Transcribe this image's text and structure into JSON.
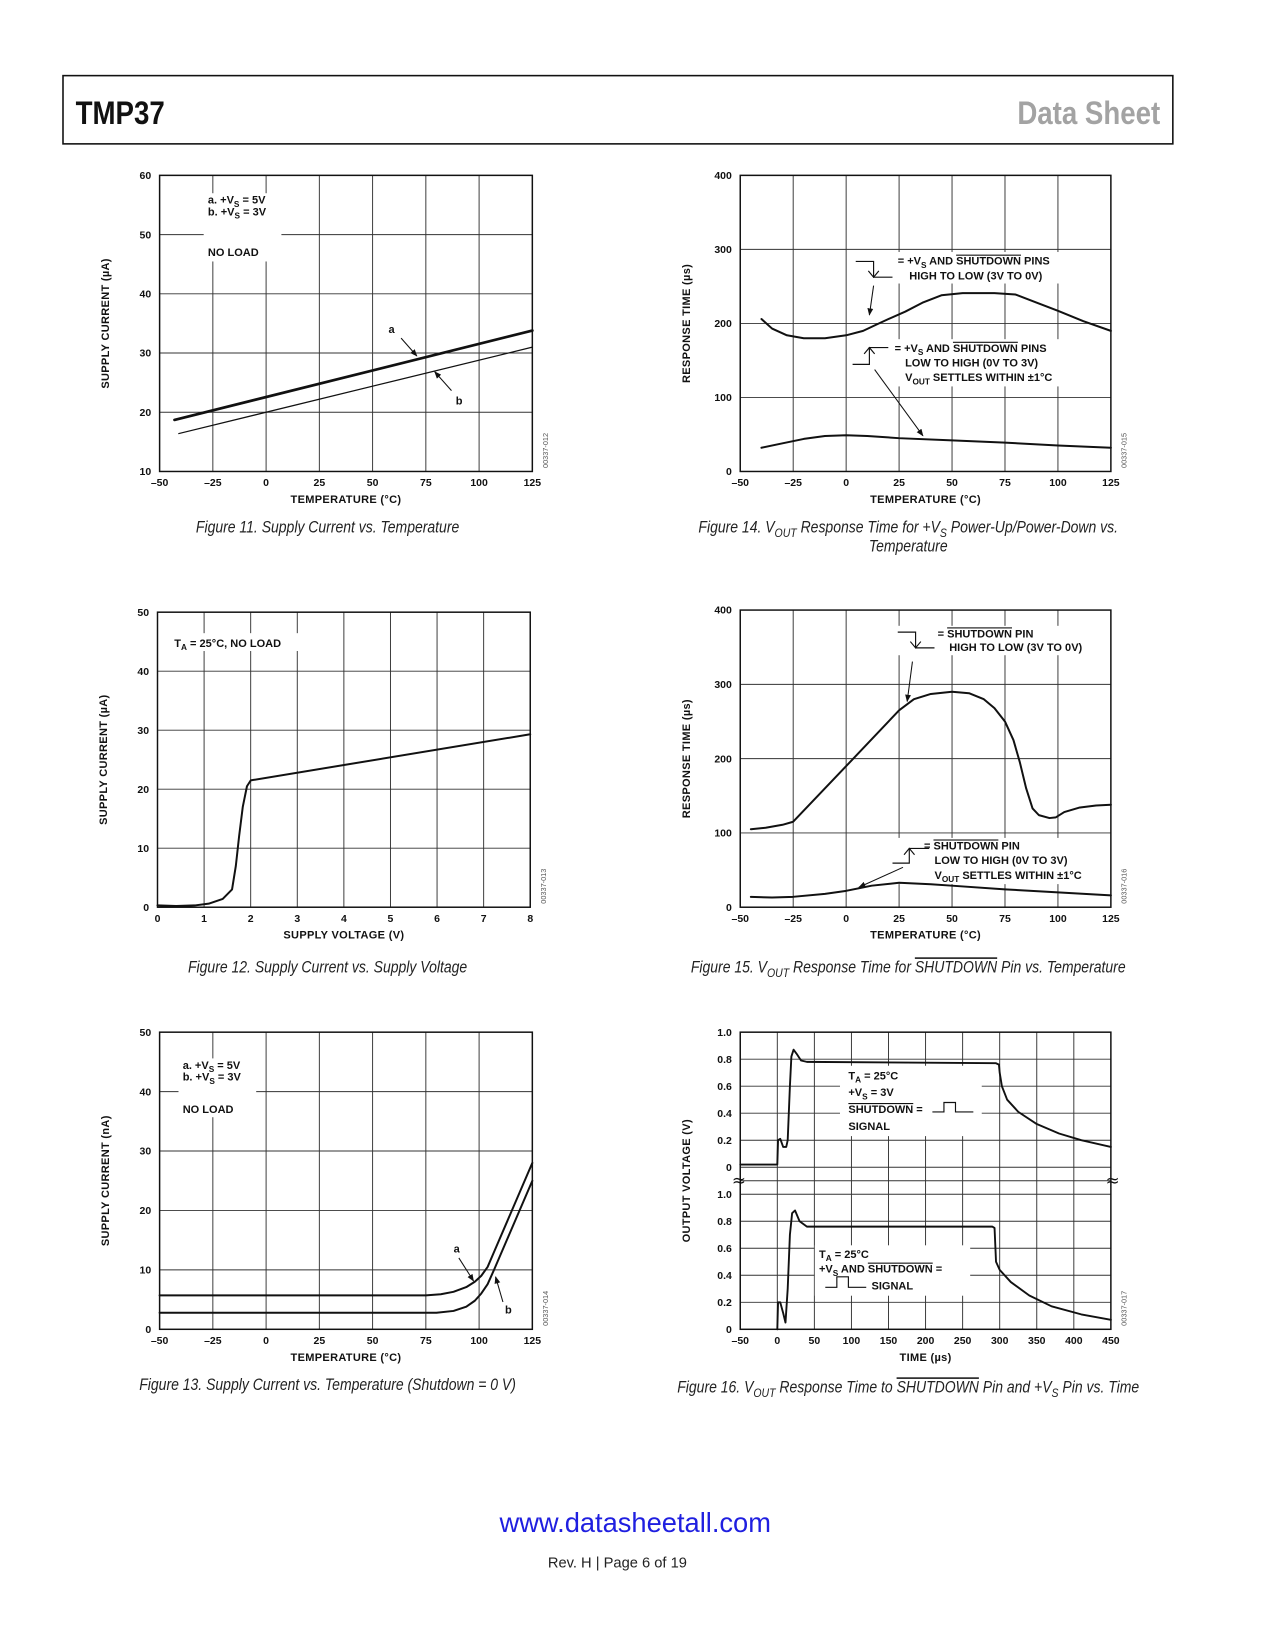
{
  "header": {
    "title": "TMP37",
    "doc_type": "Data Sheet"
  },
  "footer": {
    "url": "www.datasheetall.com",
    "page": "Rev. H | Page 6 of 19"
  },
  "chart_data": [
    {
      "type": "line",
      "caption_lines": [
        "Figure 11. Supply Current vs. Temperature"
      ],
      "figure_id": "00337-012",
      "xlabel": "TEMPERATURE (°C)",
      "ylabel": "SUPPLY CURRENT (µA)",
      "xlim": [
        -50,
        125
      ],
      "ylim": [
        10,
        60
      ],
      "xticks": [
        -50,
        -25,
        0,
        25,
        50,
        75,
        100,
        125
      ],
      "yticks": [
        10,
        20,
        30,
        40,
        50,
        60
      ],
      "grid": true,
      "series": [
        {
          "name": "a",
          "label": "a",
          "condition": "+VS = 5V",
          "points": [
            [
              -43,
              18.7
            ],
            [
              125,
              33.8
            ]
          ]
        },
        {
          "name": "b",
          "label": "b",
          "condition": "+VS = 3V",
          "points": [
            [
              -41,
              16.4
            ],
            [
              125,
              31.0
            ]
          ]
        }
      ],
      "annotations": [
        [
          "a.  +V{S} = 5V",
          "b.  +V{S} = 3V"
        ],
        [
          "NO LOAD"
        ]
      ]
    },
    {
      "type": "line",
      "caption_lines": [
        "Figure 14. V{OUT} Response Time for +V{S} Power-Up/Power-Down vs.",
        "Temperature"
      ],
      "figure_id": "00337-015",
      "xlabel": "TEMPERATURE (°C)",
      "ylabel": "RESPONSE TIME (µs)",
      "xlim": [
        -50,
        125
      ],
      "ylim": [
        0,
        400
      ],
      "xticks": [
        -50,
        -25,
        0,
        25,
        50,
        75,
        100,
        125
      ],
      "yticks": [
        0,
        100,
        200,
        300,
        400
      ],
      "grid": true,
      "series": [
        {
          "name": "high-to-low",
          "points": [
            [
              -40,
              206
            ],
            [
              -35,
              193
            ],
            [
              -28,
              184
            ],
            [
              -20,
              180
            ],
            [
              -10,
              180
            ],
            [
              0,
              184
            ],
            [
              8,
              190
            ],
            [
              14,
              198
            ],
            [
              20,
              206
            ],
            [
              28,
              216
            ],
            [
              36,
              228
            ],
            [
              45,
              238
            ],
            [
              55,
              241
            ],
            [
              70,
              241
            ],
            [
              80,
              239
            ],
            [
              90,
              228
            ],
            [
              100,
              217
            ],
            [
              112,
              203
            ],
            [
              125,
              190
            ]
          ]
        },
        {
          "name": "low-to-high",
          "points": [
            [
              -40,
              32
            ],
            [
              -30,
              38
            ],
            [
              -20,
              44
            ],
            [
              -10,
              48
            ],
            [
              0,
              49
            ],
            [
              10,
              48
            ],
            [
              25,
              45
            ],
            [
              50,
              42
            ],
            [
              75,
              39
            ],
            [
              100,
              35
            ],
            [
              125,
              32
            ]
          ]
        }
      ],
      "annotations": [
        [
          "= +V{S} AND [SHUTDOWN] PINS",
          "HIGH TO LOW (3V TO 0V)"
        ],
        [
          "= +V{S} AND [SHUTDOWN] PINS",
          "LOW TO HIGH (0V TO 3V)",
          "V{OUT} SETTLES WITHIN ±1°C"
        ]
      ]
    },
    {
      "type": "line",
      "caption_lines": [
        "Figure 12. Supply Current vs. Supply Voltage"
      ],
      "figure_id": "00337-013",
      "xlabel": "SUPPLY VOLTAGE (V)",
      "ylabel": "SUPPLY CURRENT (µA)",
      "xlim": [
        0,
        8
      ],
      "ylim": [
        0,
        50
      ],
      "xticks": [
        0,
        1,
        2,
        3,
        4,
        5,
        6,
        7,
        8
      ],
      "yticks": [
        0,
        10,
        20,
        30,
        40,
        50
      ],
      "grid": true,
      "series": [
        {
          "name": "supply-current",
          "points": [
            [
              0,
              0.3
            ],
            [
              0.4,
              0.2
            ],
            [
              0.8,
              0.3
            ],
            [
              1.1,
              0.6
            ],
            [
              1.4,
              1.4
            ],
            [
              1.6,
              3
            ],
            [
              1.68,
              7
            ],
            [
              1.75,
              12
            ],
            [
              1.83,
              17
            ],
            [
              1.92,
              20.5
            ],
            [
              2.0,
              21.5
            ],
            [
              8,
              29.3
            ]
          ]
        }
      ],
      "annotations": [
        [
          "T{A} = 25°C, NO LOAD"
        ]
      ]
    },
    {
      "type": "line",
      "caption_lines": [
        "Figure 15. V{OUT} Response Time for [SHUTDOWN] Pin vs. Temperature"
      ],
      "figure_id": "00337-016",
      "xlabel": "TEMPERATURE (°C)",
      "ylabel": "RESPONSE TIME (µs)",
      "xlim": [
        -50,
        125
      ],
      "ylim": [
        0,
        400
      ],
      "xticks": [
        -50,
        -25,
        0,
        25,
        50,
        75,
        100,
        125
      ],
      "yticks": [
        0,
        100,
        200,
        300,
        400
      ],
      "grid": true,
      "series": [
        {
          "name": "high-to-low",
          "points": [
            [
              -45,
              105
            ],
            [
              -38,
              107
            ],
            [
              -30,
              111
            ],
            [
              -25,
              115
            ],
            [
              0,
              190
            ],
            [
              25,
              265
            ],
            [
              32,
              280
            ],
            [
              40,
              287
            ],
            [
              50,
              290
            ],
            [
              58,
              288
            ],
            [
              65,
              280
            ],
            [
              70,
              268
            ],
            [
              75,
              250
            ],
            [
              79,
              225
            ],
            [
              82,
              195
            ],
            [
              85,
              160
            ],
            [
              88,
              133
            ],
            [
              91,
              124
            ],
            [
              96,
              120
            ],
            [
              99,
              121
            ],
            [
              103,
              128
            ],
            [
              110,
              134
            ],
            [
              118,
              137
            ],
            [
              125,
              138
            ]
          ]
        },
        {
          "name": "low-to-high",
          "points": [
            [
              -45,
              14
            ],
            [
              -35,
              13
            ],
            [
              -25,
              14
            ],
            [
              -10,
              18
            ],
            [
              0,
              22
            ],
            [
              12,
              29
            ],
            [
              25,
              33
            ],
            [
              40,
              31
            ],
            [
              50,
              29
            ],
            [
              75,
              24
            ],
            [
              100,
              20
            ],
            [
              125,
              16
            ]
          ]
        }
      ],
      "annotations": [
        [
          "= [SHUTDOWN] PIN",
          "HIGH TO LOW (3V TO 0V)"
        ],
        [
          "= [SHUTDOWN] PIN",
          "LOW TO HIGH (0V TO 3V)",
          "V{OUT} SETTLES WITHIN ±1°C"
        ]
      ]
    },
    {
      "type": "line",
      "caption_lines": [
        "Figure 13. Supply Current vs. Temperature (Shutdown = 0 V)"
      ],
      "figure_id": "00337-014",
      "xlabel": "TEMPERATURE (°C)",
      "ylabel": "SUPPLY CURRENT (nA)",
      "xlim": [
        -50,
        125
      ],
      "ylim": [
        0,
        50
      ],
      "xticks": [
        -50,
        -25,
        0,
        25,
        50,
        75,
        100,
        125
      ],
      "yticks": [
        0,
        10,
        20,
        30,
        40,
        50
      ],
      "grid": true,
      "series": [
        {
          "name": "a",
          "label": "a",
          "condition": "+VS = 5V",
          "points": [
            [
              -50,
              5.7
            ],
            [
              75,
              5.7
            ],
            [
              82,
              5.9
            ],
            [
              88,
              6.3
            ],
            [
              94,
              7.1
            ],
            [
              98,
              8.0
            ],
            [
              101,
              9.0
            ],
            [
              104,
              10.5
            ],
            [
              107,
              13
            ],
            [
              125,
              28
            ]
          ]
        },
        {
          "name": "b",
          "label": "b",
          "condition": "+VS = 3V",
          "points": [
            [
              -50,
              2.8
            ],
            [
              80,
              2.8
            ],
            [
              88,
              3.1
            ],
            [
              94,
              3.8
            ],
            [
              98,
              4.8
            ],
            [
              101,
              6.0
            ],
            [
              104,
              7.6
            ],
            [
              107,
              10
            ],
            [
              125,
              25
            ]
          ]
        }
      ],
      "annotations": [
        [
          "a.  +V{S} = 5V",
          "b.  +V{S} = 3V"
        ],
        [
          "NO LOAD"
        ]
      ]
    },
    {
      "type": "line",
      "caption_lines": [
        "Figure 16. V{OUT} Response Time to [SHUTDOWN] Pin and +V{S} Pin vs. Time"
      ],
      "figure_id": "00337-017",
      "xlabel": "TIME (µs)",
      "ylabel": "OUTPUT VOLTAGE (V)",
      "xlim": [
        -50,
        450
      ],
      "xticks": [
        -50,
        0,
        50,
        100,
        150,
        200,
        250,
        300,
        350,
        400,
        450
      ],
      "grid": true,
      "panels": [
        {
          "name": "top",
          "ylim": [
            0,
            1.0
          ],
          "yticks": [
            0,
            0.2,
            0.4,
            0.6,
            0.8,
            1.0
          ],
          "series": [
            {
              "name": "shutdown-signal",
              "points": [
                [
                  -50,
                  0.02
                ],
                [
                  0,
                  0.02
                ],
                [
                  1,
                  0.2
                ],
                [
                  4,
                  0.21
                ],
                [
                  8,
                  0.15
                ],
                [
                  12,
                  0.15
                ],
                [
                  14,
                  0.2
                ],
                [
                  17,
                  0.6
                ],
                [
                  19,
                  0.82
                ],
                [
                  22,
                  0.87
                ],
                [
                  26,
                  0.84
                ],
                [
                  32,
                  0.79
                ],
                [
                  40,
                  0.78
                ],
                [
                  295,
                  0.77
                ],
                [
                  299,
                  0.76
                ],
                [
                  300,
                  0.7
                ],
                [
                  303,
                  0.6
                ],
                [
                  310,
                  0.5
                ],
                [
                  325,
                  0.41
                ],
                [
                  350,
                  0.32
                ],
                [
                  380,
                  0.25
                ],
                [
                  410,
                  0.2
                ],
                [
                  450,
                  0.15
                ]
              ]
            }
          ],
          "annotation": [
            "T{A} = 25°C",
            "+V{S} = 3V",
            "[SHUTDOWN] =",
            "SIGNAL"
          ]
        },
        {
          "name": "bottom",
          "ylim": [
            0,
            1.0
          ],
          "yticks": [
            0,
            0.2,
            0.4,
            0.6,
            0.8,
            1.0
          ],
          "series": [
            {
              "name": "vs-and-shutdown-signal",
              "points": [
                [
                  0,
                  0.0
                ],
                [
                  1,
                  0.2
                ],
                [
                  4,
                  0.2
                ],
                [
                  8,
                  0.12
                ],
                [
                  11,
                  0.05
                ],
                [
                  14,
                  0.3
                ],
                [
                  17,
                  0.7
                ],
                [
                  20,
                  0.86
                ],
                [
                  24,
                  0.88
                ],
                [
                  30,
                  0.8
                ],
                [
                  40,
                  0.76
                ],
                [
                  290,
                  0.76
                ],
                [
                  293,
                  0.75
                ],
                [
                  295,
                  0.5
                ],
                [
                  300,
                  0.44
                ],
                [
                  315,
                  0.35
                ],
                [
                  340,
                  0.25
                ],
                [
                  370,
                  0.17
                ],
                [
                  410,
                  0.11
                ],
                [
                  450,
                  0.07
                ]
              ]
            }
          ],
          "annotation": [
            "T{A} = 25°C",
            "+V{S} AND [SHUTDOWN] =",
            "SIGNAL"
          ]
        }
      ]
    }
  ]
}
